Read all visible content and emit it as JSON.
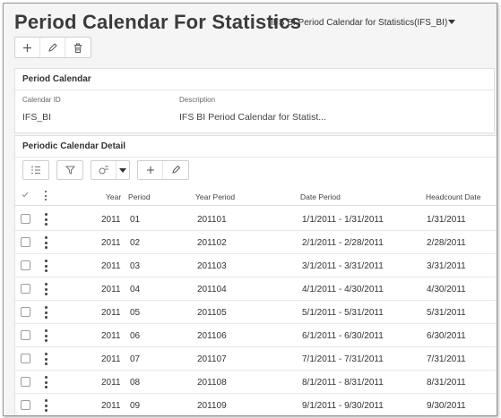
{
  "header": {
    "title": "Period Calendar For Statistics",
    "context": "IFS BI Period Calendar for Statistics(IFS_BI)"
  },
  "toolbar": {
    "new_icon": "plus-icon",
    "edit_icon": "pencil-icon",
    "delete_icon": "trash-icon"
  },
  "period_calendar": {
    "title": "Period Calendar",
    "calendar_id_label": "Calendar ID",
    "calendar_id": "IFS_BI",
    "description_label": "Description",
    "description": "IFS BI Period Calendar for Statist..."
  },
  "detail": {
    "title": "Periodic Calendar Detail",
    "columns": {
      "year": "Year",
      "period": "Period",
      "year_period": "Year Period",
      "date_period": "Date Period",
      "headcount_date": "Headcount Date"
    },
    "rows": [
      {
        "year": "2011",
        "period": "01",
        "year_period": "201101",
        "date_period": "1/1/2011 - 1/31/2011",
        "headcount_date": "1/31/2011"
      },
      {
        "year": "2011",
        "period": "02",
        "year_period": "201102",
        "date_period": "2/1/2011 - 2/28/2011",
        "headcount_date": "2/28/2011"
      },
      {
        "year": "2011",
        "period": "03",
        "year_period": "201103",
        "date_period": "3/1/2011 - 3/31/2011",
        "headcount_date": "3/31/2011"
      },
      {
        "year": "2011",
        "period": "04",
        "year_period": "201104",
        "date_period": "4/1/2011 - 4/30/2011",
        "headcount_date": "4/30/2011"
      },
      {
        "year": "2011",
        "period": "05",
        "year_period": "201105",
        "date_period": "5/1/2011 - 5/31/2011",
        "headcount_date": "5/31/2011"
      },
      {
        "year": "2011",
        "period": "06",
        "year_period": "201106",
        "date_period": "6/1/2011 - 6/30/2011",
        "headcount_date": "6/30/2011"
      },
      {
        "year": "2011",
        "period": "07",
        "year_period": "201107",
        "date_period": "7/1/2011 - 7/31/2011",
        "headcount_date": "7/31/2011"
      },
      {
        "year": "2011",
        "period": "08",
        "year_period": "201108",
        "date_period": "8/1/2011 - 8/31/2011",
        "headcount_date": "8/31/2011"
      },
      {
        "year": "2011",
        "period": "09",
        "year_period": "201109",
        "date_period": "9/1/2011 - 9/30/2011",
        "headcount_date": "9/30/2011"
      }
    ]
  }
}
